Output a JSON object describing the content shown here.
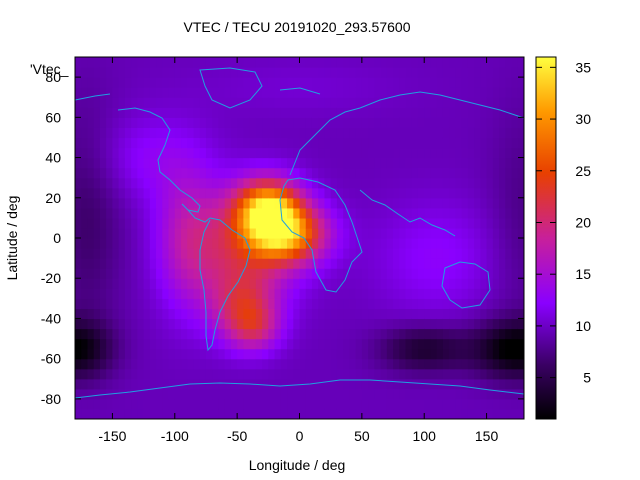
{
  "chart_data": {
    "type": "heatmap",
    "title": "VTEC / TECU 20191020_293.57600",
    "xlabel": "Longitude / deg",
    "ylabel": "Latitude / deg",
    "series_key": "'Vtec_",
    "xlim": [
      -180,
      180
    ],
    "ylim": [
      -90,
      90
    ],
    "xticks": [
      -150,
      -100,
      -50,
      0,
      50,
      100,
      150
    ],
    "yticks": [
      -80,
      -60,
      -40,
      -20,
      0,
      20,
      40,
      60,
      80
    ],
    "colorbar": {
      "min": 1,
      "max": 36,
      "ticks": [
        5,
        10,
        15,
        20,
        25,
        30,
        35
      ]
    },
    "grid_step_deg": 5,
    "background_level": 10,
    "features": [
      {
        "name": "main-crest-north",
        "lon": -25,
        "lat": 15,
        "peak": 35
      },
      {
        "name": "main-crest-center",
        "lon": -10,
        "lat": 2,
        "peak": 34
      },
      {
        "name": "atlantic-body",
        "lon": -45,
        "lat": -5,
        "peak": 22
      },
      {
        "name": "south-atlantic-tail",
        "lon": -45,
        "lat": -35,
        "peak": 20
      },
      {
        "name": "southern-lobe",
        "lon": -35,
        "lat": -45,
        "peak": 17
      },
      {
        "name": "west-flank",
        "lon": -90,
        "lat": 0,
        "peak": 17
      },
      {
        "name": "north-america-band",
        "lon": -120,
        "lat": 40,
        "peak": 14
      },
      {
        "name": "indian-ocean-band",
        "lon": 110,
        "lat": -10,
        "peak": 13
      },
      {
        "name": "north-pole-band",
        "lon": 0,
        "lat": 75,
        "peak": 11
      },
      {
        "name": "low-west-pacific",
        "lon": -180,
        "lat": -55,
        "peak": 2
      },
      {
        "name": "low-se-pacific",
        "lon": 160,
        "lat": -50,
        "peak": 1
      },
      {
        "name": "low-indian-south",
        "lon": 100,
        "lat": -55,
        "peak": 3
      },
      {
        "name": "low-east-pacific",
        "lon": -170,
        "lat": 10,
        "peak": 6
      }
    ],
    "overlay": "coastlines"
  }
}
